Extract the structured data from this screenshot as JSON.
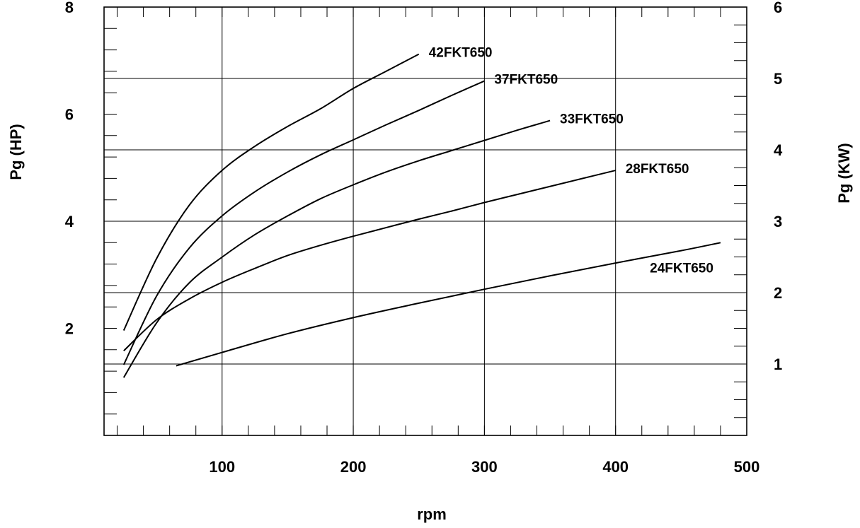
{
  "chart_data": {
    "type": "line",
    "title": "",
    "xlabel": "rpm",
    "ylabel": "Pg (HP)",
    "ylabel_right": "Pg (KW)",
    "xlim": [
      10,
      500
    ],
    "ylim": [
      0,
      8
    ],
    "ylim_right": [
      0,
      6
    ],
    "x_ticks": [
      100,
      200,
      300,
      400,
      500
    ],
    "y_ticks": [
      2,
      4,
      6,
      8
    ],
    "y_ticks_right": [
      1,
      2,
      3,
      4,
      5,
      6
    ],
    "grid": true,
    "series": [
      {
        "name": "42FKT650",
        "x": [
          25,
          50,
          75,
          100,
          125,
          150,
          175,
          200,
          225,
          250
        ],
        "y": [
          1.96,
          3.3,
          4.3,
          4.95,
          5.4,
          5.77,
          6.1,
          6.48,
          6.8,
          7.12
        ]
      },
      {
        "name": "37FKT650",
        "x": [
          25,
          50,
          75,
          100,
          125,
          150,
          175,
          200,
          225,
          250,
          275,
          300
        ],
        "y": [
          1.32,
          2.6,
          3.5,
          4.1,
          4.55,
          4.92,
          5.24,
          5.52,
          5.8,
          6.07,
          6.35,
          6.62
        ]
      },
      {
        "name": "33FKT650",
        "x": [
          25,
          50,
          75,
          100,
          125,
          150,
          175,
          200,
          225,
          250,
          275,
          300,
          325,
          350
        ],
        "y": [
          1.08,
          2.1,
          2.85,
          3.33,
          3.75,
          4.1,
          4.42,
          4.68,
          4.92,
          5.13,
          5.32,
          5.51,
          5.7,
          5.88
        ]
      },
      {
        "name": "28FKT650",
        "x": [
          25,
          50,
          75,
          100,
          125,
          150,
          175,
          200,
          225,
          250,
          275,
          300,
          325,
          350,
          375,
          400
        ],
        "y": [
          1.58,
          2.16,
          2.55,
          2.86,
          3.12,
          3.36,
          3.55,
          3.72,
          3.88,
          4.04,
          4.19,
          4.35,
          4.5,
          4.65,
          4.8,
          4.95
        ]
      },
      {
        "name": "24FKT650",
        "x": [
          65,
          100,
          150,
          200,
          250,
          300,
          350,
          400,
          450,
          480
        ],
        "y": [
          1.3,
          1.55,
          1.9,
          2.2,
          2.47,
          2.73,
          2.98,
          3.22,
          3.45,
          3.6
        ]
      }
    ]
  }
}
